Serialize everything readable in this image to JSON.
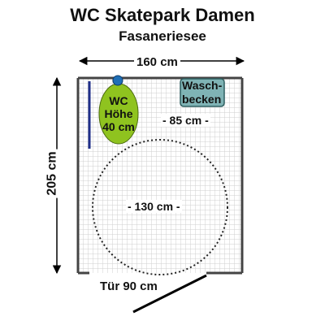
{
  "header": {
    "title": "WC Skatepark Damen",
    "subtitle": "Fasaneriesee"
  },
  "dimensions": {
    "width": "160 cm",
    "height": "205 cm",
    "door": "Tür 90 cm",
    "wc_to_sink": "- 85 cm -",
    "turning_circle": "- 130 cm -"
  },
  "fixtures": {
    "wc": {
      "line1": "WC",
      "line2": "Höhe",
      "line3": "40 cm"
    },
    "sink": {
      "line1": "Wasch-",
      "line2": "becken"
    }
  },
  "colors": {
    "floor_grid": "#d7d7d7",
    "wall": "#444444",
    "wc_fill": "#8fc31f",
    "wc_cistern": "#1f6fb6",
    "sink_fill": "#7fb3b5",
    "grab_bar": "#1f2f8a",
    "door": "#000000"
  }
}
